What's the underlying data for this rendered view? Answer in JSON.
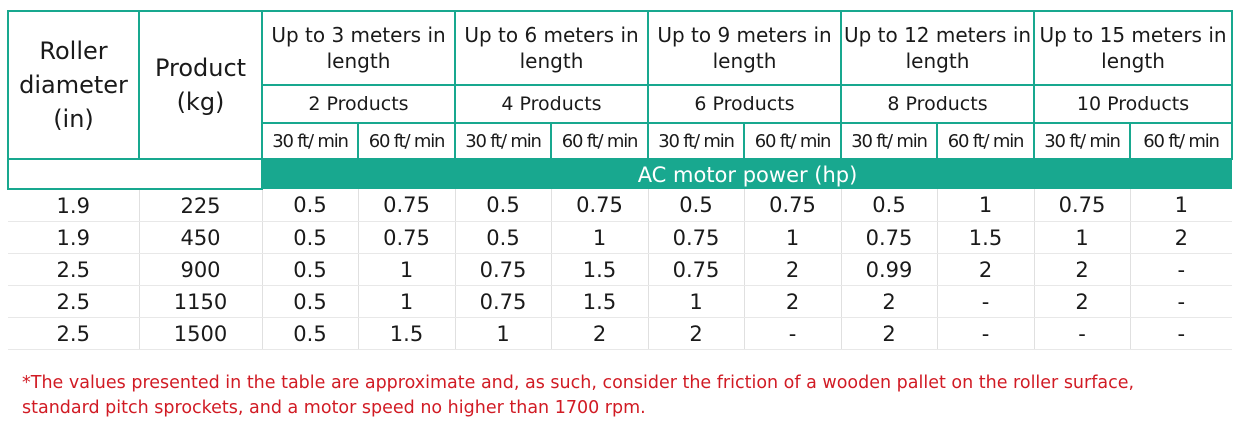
{
  "headers": {
    "roller_diameter": [
      "Roller",
      "diameter",
      "(in)"
    ],
    "product": [
      "Product",
      "(kg)"
    ],
    "groups": [
      {
        "length": [
          "Up to 3 meters in",
          "length"
        ],
        "products": "2 Products"
      },
      {
        "length": [
          "Up to 6 meters in",
          "length"
        ],
        "products": "4 Products"
      },
      {
        "length": [
          "Up to 9 meters in",
          "length"
        ],
        "products": "6 Products"
      },
      {
        "length": [
          "Up to 12 meters in",
          "length"
        ],
        "products": "8 Products"
      },
      {
        "length": [
          "Up to 15 meters in",
          "length"
        ],
        "products": "10 Products"
      }
    ],
    "speeds": [
      "30 ft/ min",
      "60 ft/ min",
      "30 ft/ min",
      "60 ft/ min",
      "30 ft/ min",
      "60 ft/ min",
      "30 ft/ min",
      "60 ft/ min",
      "30 ft/ min",
      "60 ft/ min"
    ],
    "band": "AC motor power (hp)"
  },
  "rows": [
    [
      "1.9",
      "225",
      "0.5",
      "0.75",
      "0.5",
      "0.75",
      "0.5",
      "0.75",
      "0.5",
      "1",
      "0.75",
      "1"
    ],
    [
      "1.9",
      "450",
      "0.5",
      "0.75",
      "0.5",
      "1",
      "0.75",
      "1",
      "0.75",
      "1.5",
      "1",
      "2"
    ],
    [
      "2.5",
      "900",
      "0.5",
      "1",
      "0.75",
      "1.5",
      "0.75",
      "2",
      "0.99",
      "2",
      "2",
      "-"
    ],
    [
      "2.5",
      "1150",
      "0.5",
      "1",
      "0.75",
      "1.5",
      "1",
      "2",
      "2",
      "-",
      "2",
      "-"
    ],
    [
      "2.5",
      "1500",
      "0.5",
      "1.5",
      "1",
      "2",
      "2",
      "-",
      "2",
      "-",
      "-",
      "-"
    ]
  ],
  "note": [
    "*The values presented in the table are approximate and, as such, consider the friction of a wooden pallet on the roller surface,",
    "standard pitch sprockets, and a motor speed no higher than 1700 rpm."
  ],
  "colors": {
    "accent": "#18a88f",
    "note": "#d11b24"
  }
}
